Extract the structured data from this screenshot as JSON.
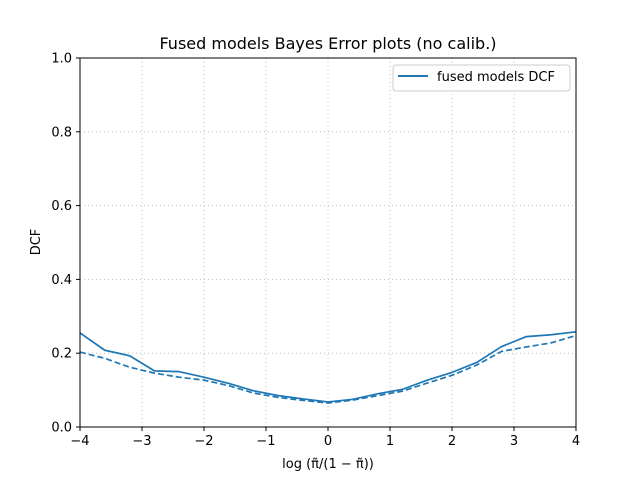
{
  "chart_data": {
    "type": "line",
    "title": "Fused models Bayes Error plots (no calib.)",
    "xlabel": "log (π̃/(1 − π̃))",
    "ylabel": "DCF",
    "xlim": [
      -4,
      4
    ],
    "ylim": [
      0,
      1
    ],
    "x_ticks": [
      -4,
      -3,
      -2,
      -1,
      0,
      1,
      2,
      3,
      4
    ],
    "x_tick_labels": [
      "−4",
      "−3",
      "−2",
      "−1",
      "0",
      "1",
      "2",
      "3",
      "4"
    ],
    "y_ticks": [
      0,
      0.2,
      0.4,
      0.6,
      0.8,
      1.0
    ],
    "y_tick_labels": [
      "0.0",
      "0.2",
      "0.4",
      "0.6",
      "0.8",
      "1.0"
    ],
    "grid": true,
    "legend_position": "top-right",
    "color": "#1f77b4",
    "x": [
      -4.0,
      -3.6,
      -3.2,
      -2.8,
      -2.4,
      -2.0,
      -1.6,
      -1.2,
      -0.8,
      -0.4,
      0.0,
      0.4,
      0.8,
      1.2,
      1.6,
      2.0,
      2.4,
      2.8,
      3.2,
      3.6,
      4.0
    ],
    "series": [
      {
        "name": "fused models DCF",
        "style": "solid",
        "values": [
          0.255,
          0.208,
          0.193,
          0.152,
          0.15,
          0.135,
          0.118,
          0.098,
          0.085,
          0.076,
          0.068,
          0.075,
          0.09,
          0.102,
          0.127,
          0.148,
          0.175,
          0.218,
          0.245,
          0.25,
          0.258
        ]
      },
      {
        "style": "dashed",
        "values": [
          0.203,
          0.186,
          0.162,
          0.146,
          0.135,
          0.127,
          0.112,
          0.092,
          0.08,
          0.072,
          0.065,
          0.073,
          0.085,
          0.097,
          0.119,
          0.14,
          0.168,
          0.205,
          0.217,
          0.228,
          0.248
        ]
      }
    ]
  }
}
